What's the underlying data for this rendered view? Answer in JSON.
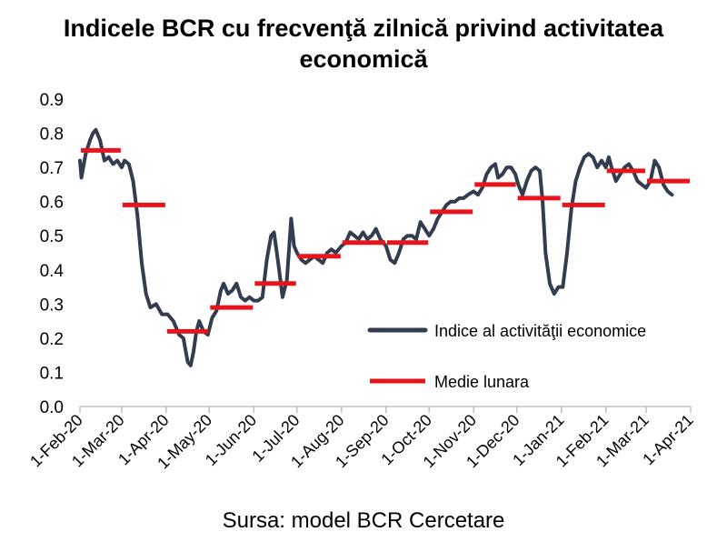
{
  "title_line1": "Indicele BCR cu frecvenţă zilnică privind activitatea",
  "title_line2": "economică",
  "source": "Sursa: model BCR Cercetare",
  "colors": {
    "index_line": "#323d4f",
    "monthly_mean": "#e8141c",
    "axis": "#bfbfbf"
  },
  "chart_data": {
    "type": "line",
    "title": "Indicele BCR cu frecvenţă zilnică privind activitatea economică",
    "ylim": [
      0,
      0.9
    ],
    "y_ticks": [
      "0.0",
      "0.1",
      "0.2",
      "0.3",
      "0.4",
      "0.5",
      "0.6",
      "0.7",
      "0.8",
      "0.9"
    ],
    "x_ticks": [
      "1-Feb-20",
      "1-Mar-20",
      "1-Apr-20",
      "1-May-20",
      "1-Jun-20",
      "1-Jul-20",
      "1-Aug-20",
      "1-Sep-20",
      "1-Oct-20",
      "1-Nov-20",
      "1-Dec-20",
      "1-Jan-21",
      "1-Feb-21",
      "1-Mar-21",
      "1-Apr-21"
    ],
    "grid": false,
    "legend_position": "bottom-right",
    "series": [
      {
        "name": "Indice al activităţii economice",
        "kind": "line",
        "points": [
          [
            "2020-02-01",
            0.72
          ],
          [
            "2020-02-02",
            0.67
          ],
          [
            "2020-02-05",
            0.74
          ],
          [
            "2020-02-08",
            0.78
          ],
          [
            "2020-02-10",
            0.8
          ],
          [
            "2020-02-12",
            0.81
          ],
          [
            "2020-02-15",
            0.78
          ],
          [
            "2020-02-18",
            0.72
          ],
          [
            "2020-02-21",
            0.73
          ],
          [
            "2020-02-24",
            0.71
          ],
          [
            "2020-02-27",
            0.72
          ],
          [
            "2020-03-01",
            0.7
          ],
          [
            "2020-03-03",
            0.72
          ],
          [
            "2020-03-06",
            0.71
          ],
          [
            "2020-03-09",
            0.66
          ],
          [
            "2020-03-12",
            0.56
          ],
          [
            "2020-03-15",
            0.42
          ],
          [
            "2020-03-18",
            0.33
          ],
          [
            "2020-03-21",
            0.29
          ],
          [
            "2020-03-25",
            0.3
          ],
          [
            "2020-03-29",
            0.27
          ],
          [
            "2020-04-02",
            0.27
          ],
          [
            "2020-04-06",
            0.25
          ],
          [
            "2020-04-10",
            0.21
          ],
          [
            "2020-04-13",
            0.2
          ],
          [
            "2020-04-16",
            0.13
          ],
          [
            "2020-04-18",
            0.12
          ],
          [
            "2020-04-20",
            0.16
          ],
          [
            "2020-04-22",
            0.22
          ],
          [
            "2020-04-24",
            0.25
          ],
          [
            "2020-04-27",
            0.22
          ],
          [
            "2020-04-30",
            0.21
          ],
          [
            "2020-05-03",
            0.26
          ],
          [
            "2020-05-06",
            0.28
          ],
          [
            "2020-05-09",
            0.34
          ],
          [
            "2020-05-11",
            0.36
          ],
          [
            "2020-05-14",
            0.33
          ],
          [
            "2020-05-17",
            0.34
          ],
          [
            "2020-05-20",
            0.36
          ],
          [
            "2020-05-23",
            0.32
          ],
          [
            "2020-05-26",
            0.31
          ],
          [
            "2020-05-29",
            0.32
          ],
          [
            "2020-06-01",
            0.31
          ],
          [
            "2020-06-04",
            0.31
          ],
          [
            "2020-06-07",
            0.32
          ],
          [
            "2020-06-10",
            0.43
          ],
          [
            "2020-06-13",
            0.5
          ],
          [
            "2020-06-15",
            0.51
          ],
          [
            "2020-06-18",
            0.42
          ],
          [
            "2020-06-21",
            0.32
          ],
          [
            "2020-06-24",
            0.37
          ],
          [
            "2020-06-27",
            0.55
          ],
          [
            "2020-06-29",
            0.47
          ],
          [
            "2020-07-01",
            0.45
          ],
          [
            "2020-07-04",
            0.43
          ],
          [
            "2020-07-07",
            0.42
          ],
          [
            "2020-07-10",
            0.43
          ],
          [
            "2020-07-13",
            0.44
          ],
          [
            "2020-07-16",
            0.43
          ],
          [
            "2020-07-19",
            0.42
          ],
          [
            "2020-07-22",
            0.45
          ],
          [
            "2020-07-25",
            0.46
          ],
          [
            "2020-07-28",
            0.45
          ],
          [
            "2020-08-01",
            0.47
          ],
          [
            "2020-08-04",
            0.48
          ],
          [
            "2020-08-07",
            0.51
          ],
          [
            "2020-08-10",
            0.5
          ],
          [
            "2020-08-13",
            0.49
          ],
          [
            "2020-08-16",
            0.51
          ],
          [
            "2020-08-19",
            0.49
          ],
          [
            "2020-08-22",
            0.5
          ],
          [
            "2020-08-25",
            0.52
          ],
          [
            "2020-08-28",
            0.49
          ],
          [
            "2020-09-01",
            0.47
          ],
          [
            "2020-09-04",
            0.43
          ],
          [
            "2020-09-07",
            0.42
          ],
          [
            "2020-09-10",
            0.45
          ],
          [
            "2020-09-13",
            0.49
          ],
          [
            "2020-09-16",
            0.5
          ],
          [
            "2020-09-19",
            0.5
          ],
          [
            "2020-09-22",
            0.49
          ],
          [
            "2020-09-25",
            0.54
          ],
          [
            "2020-09-28",
            0.52
          ],
          [
            "2020-10-01",
            0.5
          ],
          [
            "2020-10-04",
            0.52
          ],
          [
            "2020-10-07",
            0.55
          ],
          [
            "2020-10-10",
            0.57
          ],
          [
            "2020-10-13",
            0.59
          ],
          [
            "2020-10-16",
            0.6
          ],
          [
            "2020-10-19",
            0.6
          ],
          [
            "2020-10-22",
            0.61
          ],
          [
            "2020-10-25",
            0.61
          ],
          [
            "2020-10-28",
            0.62
          ],
          [
            "2020-11-01",
            0.63
          ],
          [
            "2020-11-04",
            0.62
          ],
          [
            "2020-11-07",
            0.64
          ],
          [
            "2020-11-10",
            0.68
          ],
          [
            "2020-11-13",
            0.7
          ],
          [
            "2020-11-16",
            0.71
          ],
          [
            "2020-11-18",
            0.67
          ],
          [
            "2020-11-21",
            0.68
          ],
          [
            "2020-11-24",
            0.7
          ],
          [
            "2020-11-27",
            0.7
          ],
          [
            "2020-11-30",
            0.68
          ],
          [
            "2020-12-02",
            0.65
          ],
          [
            "2020-12-05",
            0.62
          ],
          [
            "2020-12-08",
            0.66
          ],
          [
            "2020-12-11",
            0.69
          ],
          [
            "2020-12-14",
            0.7
          ],
          [
            "2020-12-17",
            0.69
          ],
          [
            "2020-12-19",
            0.6
          ],
          [
            "2020-12-21",
            0.45
          ],
          [
            "2020-12-24",
            0.36
          ],
          [
            "2020-12-27",
            0.33
          ],
          [
            "2020-12-30",
            0.35
          ],
          [
            "2021-01-02",
            0.35
          ],
          [
            "2021-01-05",
            0.45
          ],
          [
            "2021-01-08",
            0.58
          ],
          [
            "2021-01-11",
            0.66
          ],
          [
            "2021-01-14",
            0.7
          ],
          [
            "2021-01-17",
            0.73
          ],
          [
            "2021-01-20",
            0.74
          ],
          [
            "2021-01-23",
            0.73
          ],
          [
            "2021-01-26",
            0.7
          ],
          [
            "2021-01-29",
            0.72
          ],
          [
            "2021-02-01",
            0.7
          ],
          [
            "2021-02-03",
            0.73
          ],
          [
            "2021-02-05",
            0.7
          ],
          [
            "2021-02-08",
            0.66
          ],
          [
            "2021-02-11",
            0.68
          ],
          [
            "2021-02-14",
            0.7
          ],
          [
            "2021-02-17",
            0.71
          ],
          [
            "2021-02-20",
            0.69
          ],
          [
            "2021-02-23",
            0.66
          ],
          [
            "2021-02-26",
            0.65
          ],
          [
            "2021-03-01",
            0.64
          ],
          [
            "2021-03-04",
            0.66
          ],
          [
            "2021-03-07",
            0.72
          ],
          [
            "2021-03-10",
            0.7
          ],
          [
            "2021-03-13",
            0.65
          ],
          [
            "2021-03-16",
            0.63
          ],
          [
            "2021-03-19",
            0.62
          ]
        ]
      },
      {
        "name": "Medie lunara",
        "kind": "monthly_step",
        "segments": [
          {
            "from": "2020-02-01",
            "to": "2020-03-01",
            "value": 0.75
          },
          {
            "from": "2020-03-01",
            "to": "2020-04-01",
            "value": 0.59
          },
          {
            "from": "2020-04-01",
            "to": "2020-05-01",
            "value": 0.22
          },
          {
            "from": "2020-05-01",
            "to": "2020-06-01",
            "value": 0.29
          },
          {
            "from": "2020-06-01",
            "to": "2020-07-01",
            "value": 0.36
          },
          {
            "from": "2020-07-01",
            "to": "2020-08-01",
            "value": 0.44
          },
          {
            "from": "2020-08-01",
            "to": "2020-09-01",
            "value": 0.48
          },
          {
            "from": "2020-09-01",
            "to": "2020-10-01",
            "value": 0.48
          },
          {
            "from": "2020-10-01",
            "to": "2020-11-01",
            "value": 0.57
          },
          {
            "from": "2020-11-01",
            "to": "2020-12-01",
            "value": 0.65
          },
          {
            "from": "2020-12-01",
            "to": "2021-01-01",
            "value": 0.61
          },
          {
            "from": "2021-01-01",
            "to": "2021-02-01",
            "value": 0.59
          },
          {
            "from": "2021-02-01",
            "to": "2021-03-01",
            "value": 0.69
          },
          {
            "from": "2021-03-01",
            "to": "2021-04-01",
            "value": 0.66
          }
        ]
      }
    ]
  }
}
